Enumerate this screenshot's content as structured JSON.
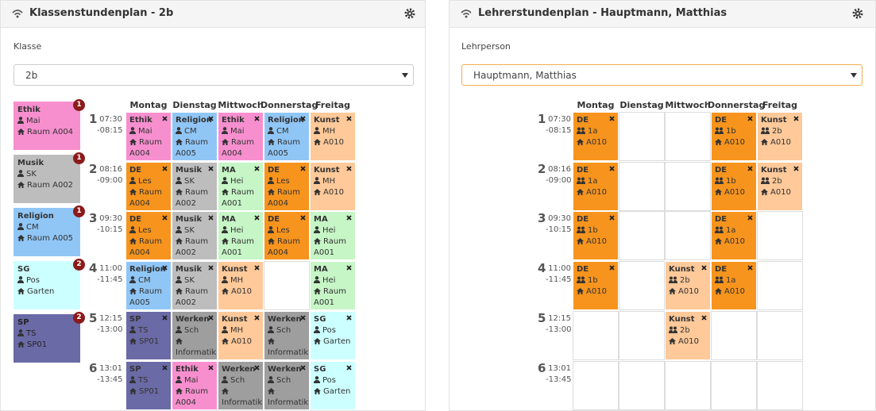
{
  "left": {
    "title": "Klassenstundenplan - 2b",
    "label": "Klasse",
    "select": "2b",
    "pool": [
      {
        "subject": "Ethik",
        "teacher": "Mai",
        "room": "Raum A004",
        "count": "1",
        "color": "#f78fcf"
      },
      {
        "subject": "Musik",
        "teacher": "SK",
        "room": "Raum A002",
        "count": "1",
        "color": "#bdbdbd"
      },
      {
        "subject": "Religion",
        "teacher": "CM",
        "room": "Raum A005",
        "count": "1",
        "color": "#90c6f6"
      },
      {
        "subject": "SG",
        "teacher": "Pos",
        "room": "Garten",
        "count": "2",
        "color": "#ccffff"
      },
      {
        "subject": "SP",
        "teacher": "TS",
        "room": "SP01",
        "count": "2",
        "color": "#6a6aa6"
      }
    ],
    "days": [
      "Montag",
      "Dienstag",
      "Mittwoch",
      "Donnerstag",
      "Freitag"
    ],
    "periods": [
      {
        "num": "1",
        "start": "07:30",
        "end": "-08:15"
      },
      {
        "num": "2",
        "start": "08:16",
        "end": "-09:00"
      },
      {
        "num": "3",
        "start": "09:30",
        "end": "-10:15"
      },
      {
        "num": "4",
        "start": "11:00",
        "end": "-11:45"
      },
      {
        "num": "5",
        "start": "12:15",
        "end": "-13:00"
      },
      {
        "num": "6",
        "start": "13:01",
        "end": "-13:45"
      }
    ],
    "grid": [
      [
        {
          "subject": "Ethik",
          "teacher": "Mai",
          "room": "Raum A004",
          "color": "#f78fcf"
        },
        {
          "subject": "Religion",
          "teacher": "CM",
          "room": "Raum A005",
          "color": "#90c6f6"
        },
        {
          "subject": "Ethik",
          "teacher": "Mai",
          "room": "Raum A004",
          "color": "#f78fcf"
        },
        {
          "subject": "Religion",
          "teacher": "CM",
          "room": "Raum A005",
          "color": "#90c6f6"
        },
        {
          "subject": "Kunst",
          "teacher": "MH",
          "room": "A010",
          "color": "#ffc999"
        }
      ],
      [
        {
          "subject": "DE",
          "teacher": "Les",
          "room": "Raum A004",
          "color": "#f7941d"
        },
        {
          "subject": "Musik",
          "teacher": "SK",
          "room": "Raum A002",
          "color": "#bdbdbd"
        },
        {
          "subject": "MA",
          "teacher": "Hei",
          "room": "Raum A001",
          "color": "#c6f5c6"
        },
        {
          "subject": "DE",
          "teacher": "Les",
          "room": "Raum A004",
          "color": "#f7941d"
        },
        {
          "subject": "Kunst",
          "teacher": "MH",
          "room": "A010",
          "color": "#ffc999"
        }
      ],
      [
        {
          "subject": "DE",
          "teacher": "Les",
          "room": "Raum A004",
          "color": "#f7941d"
        },
        {
          "subject": "Musik",
          "teacher": "SK",
          "room": "Raum A002",
          "color": "#bdbdbd"
        },
        {
          "subject": "MA",
          "teacher": "Hei",
          "room": "Raum A001",
          "color": "#c6f5c6"
        },
        {
          "subject": "DE",
          "teacher": "Les",
          "room": "Raum A004",
          "color": "#f7941d"
        },
        {
          "subject": "MA",
          "teacher": "Hei",
          "room": "Raum A001",
          "color": "#c6f5c6"
        }
      ],
      [
        {
          "subject": "Religion",
          "teacher": "CM",
          "room": "Raum A005",
          "color": "#90c6f6"
        },
        {
          "subject": "Musik",
          "teacher": "SK",
          "room": "Raum A002",
          "color": "#bdbdbd"
        },
        {
          "subject": "Kunst",
          "teacher": "MH",
          "room": "A010",
          "color": "#ffc999"
        },
        null,
        {
          "subject": "MA",
          "teacher": "Hei",
          "room": "Raum A001",
          "color": "#c6f5c6"
        }
      ],
      [
        {
          "subject": "SP",
          "teacher": "TS",
          "room": "SP01",
          "color": "#6a6aa6"
        },
        {
          "subject": "Werken",
          "teacher": "Sch",
          "room": "Informatik",
          "color": "#9e9e9e"
        },
        {
          "subject": "Kunst",
          "teacher": "MH",
          "room": "A010",
          "color": "#ffc999"
        },
        {
          "subject": "Werken",
          "teacher": "Sch",
          "room": "Informatik",
          "color": "#9e9e9e"
        },
        {
          "subject": "SG",
          "teacher": "Pos",
          "room": "Garten",
          "color": "#ccffff"
        }
      ],
      [
        {
          "subject": "SP",
          "teacher": "TS",
          "room": "SP01",
          "color": "#6a6aa6"
        },
        {
          "subject": "Ethik",
          "teacher": "Mai",
          "room": "Raum A004",
          "color": "#f78fcf"
        },
        {
          "subject": "Werken",
          "teacher": "Sch",
          "room": "Informatik",
          "color": "#9e9e9e"
        },
        {
          "subject": "Werken",
          "teacher": "Sch",
          "room": "Informatik",
          "color": "#9e9e9e"
        },
        {
          "subject": "SG",
          "teacher": "Pos",
          "room": "Garten",
          "color": "#ccffff"
        }
      ]
    ]
  },
  "right": {
    "title": "Lehrerstundenplan - Hauptmann, Matthias",
    "label": "Lehrperson",
    "select": "Hauptmann, Matthias",
    "days": [
      "Montag",
      "Dienstag",
      "Mittwoch",
      "Donnerstag",
      "Freitag"
    ],
    "periods": [
      {
        "num": "1",
        "start": "07:30",
        "end": "-08:15"
      },
      {
        "num": "2",
        "start": "08:16",
        "end": "-09:00"
      },
      {
        "num": "3",
        "start": "09:30",
        "end": "-10:15"
      },
      {
        "num": "4",
        "start": "11:00",
        "end": "-11:45"
      },
      {
        "num": "5",
        "start": "12:15",
        "end": "-13:00"
      },
      {
        "num": "6",
        "start": "13:01",
        "end": "-13:45"
      }
    ],
    "grid": [
      [
        {
          "subject": "DE",
          "class": "1a",
          "room": "A010",
          "color": "#f7941d"
        },
        null,
        null,
        {
          "subject": "DE",
          "class": "1b",
          "room": "A010",
          "color": "#f7941d"
        },
        {
          "subject": "Kunst",
          "class": "2b",
          "room": "A010",
          "color": "#ffc999"
        }
      ],
      [
        {
          "subject": "DE",
          "class": "1a",
          "room": "A010",
          "color": "#f7941d"
        },
        null,
        null,
        {
          "subject": "DE",
          "class": "1b",
          "room": "A010",
          "color": "#f7941d"
        },
        {
          "subject": "Kunst",
          "class": "2b",
          "room": "A010",
          "color": "#ffc999"
        }
      ],
      [
        {
          "subject": "DE",
          "class": "1b",
          "room": "A010",
          "color": "#f7941d"
        },
        null,
        null,
        {
          "subject": "DE",
          "class": "1a",
          "room": "A010",
          "color": "#f7941d"
        },
        null
      ],
      [
        {
          "subject": "DE",
          "class": "1b",
          "room": "A010",
          "color": "#f7941d"
        },
        null,
        {
          "subject": "Kunst",
          "class": "2b",
          "room": "A010",
          "color": "#ffc999"
        },
        {
          "subject": "DE",
          "class": "1a",
          "room": "A010",
          "color": "#f7941d"
        },
        null
      ],
      [
        null,
        null,
        {
          "subject": "Kunst",
          "class": "2b",
          "room": "A010",
          "color": "#ffc999"
        },
        null,
        null
      ],
      [
        null,
        null,
        null,
        null,
        null
      ]
    ]
  }
}
